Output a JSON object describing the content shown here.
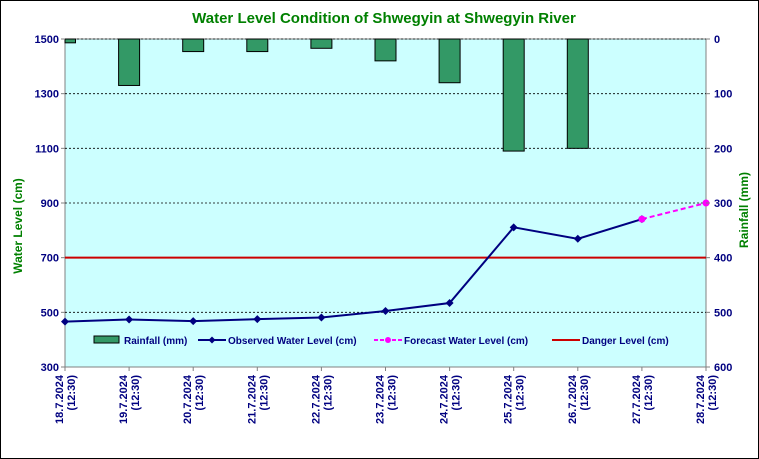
{
  "chart_data": {
    "type": "line",
    "title": "Water Level Condition of Shwegyin at Shwegyin River",
    "ylabel": "Water Level (cm)",
    "y2label": "Rainfall (mm)",
    "ylim": [
      300,
      1500
    ],
    "y2lim": [
      0,
      600
    ],
    "y2_inverted": true,
    "yticks": [
      300,
      500,
      700,
      900,
      1100,
      1300,
      1500
    ],
    "y2ticks": [
      0,
      100,
      200,
      300,
      400,
      500,
      600
    ],
    "grid": "horizontal dashed",
    "categories": [
      [
        "18.7.2024",
        "(12:30)"
      ],
      [
        "19.7.2024",
        "(12:30)"
      ],
      [
        "20.7.2024",
        "(12:30)"
      ],
      [
        "21.7.2024",
        "(12:30)"
      ],
      [
        "22.7.2024",
        "(12:30)"
      ],
      [
        "23.7.2024",
        "(12:30)"
      ],
      [
        "24.7.2024",
        "(12:30)"
      ],
      [
        "25.7.2024",
        "(12:30)"
      ],
      [
        "26.7.2024",
        "(12:30)"
      ],
      [
        "27.7.2024",
        "(12:30)"
      ],
      [
        "28.7.2024",
        "(12:30)"
      ]
    ],
    "series": [
      {
        "name": "Rainfall (mm)",
        "type": "bar",
        "axis": "right",
        "color": "#339966",
        "values": [
          7,
          85,
          23,
          23,
          17,
          40,
          80,
          205,
          200,
          null,
          null
        ]
      },
      {
        "name": "Observed Water Level (cm)",
        "type": "line",
        "axis": "left",
        "color": "#000080",
        "values": [
          466,
          474,
          468,
          475,
          481,
          505,
          534,
          811,
          769,
          841,
          null
        ]
      },
      {
        "name": "Forecast Water Level (cm)",
        "type": "line",
        "axis": "left",
        "color": "#ff00ff",
        "dashed": true,
        "values": [
          null,
          null,
          null,
          null,
          null,
          null,
          null,
          null,
          null,
          841,
          900
        ]
      },
      {
        "name": "Danger Level (cm)",
        "type": "hline",
        "axis": "left",
        "color": "#cc0000",
        "value": 700
      }
    ],
    "legend": "bottom-inside"
  }
}
